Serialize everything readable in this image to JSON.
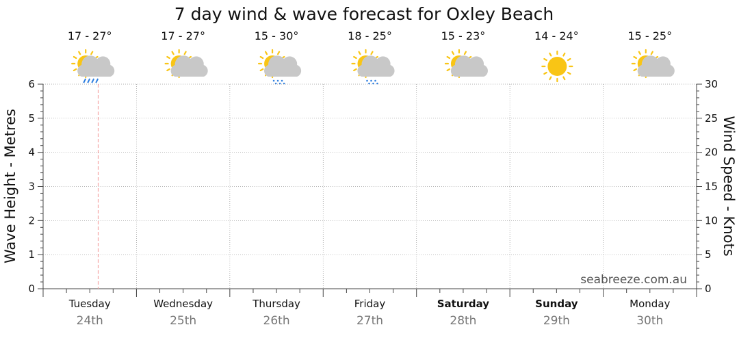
{
  "chart_data": {
    "type": "line",
    "title": "7 day wind & wave forecast for Oxley Beach",
    "ylabel": "Wave Height - Metres",
    "y2label": "Wind Speed - Knots",
    "ylim": [
      0,
      6
    ],
    "y2lim": [
      0,
      30
    ],
    "yticks": [
      "0",
      "1",
      "2",
      "3",
      "4",
      "5",
      "6"
    ],
    "y2ticks": [
      "0",
      "5",
      "10",
      "15",
      "20",
      "25",
      "30"
    ],
    "grid": true,
    "watermark": "seabreeze.com.au",
    "current_time_marker_day": 0,
    "days": [
      {
        "name": "Tuesday",
        "date": "24th",
        "temp": "17 - 27°",
        "icon": "sun-cloud-rain-icon",
        "weekend": false
      },
      {
        "name": "Wednesday",
        "date": "25th",
        "temp": "17 - 27°",
        "icon": "sun-cloud-icon",
        "weekend": false
      },
      {
        "name": "Thursday",
        "date": "26th",
        "temp": "15 - 30°",
        "icon": "sun-cloud-showers-icon",
        "weekend": false
      },
      {
        "name": "Friday",
        "date": "27th",
        "temp": "18 - 25°",
        "icon": "sun-cloud-showers-icon",
        "weekend": false
      },
      {
        "name": "Saturday",
        "date": "28th",
        "temp": "15 - 23°",
        "icon": "sun-cloud-icon",
        "weekend": true
      },
      {
        "name": "Sunday",
        "date": "29th",
        "temp": "14 - 24°",
        "icon": "sun-icon",
        "weekend": true
      },
      {
        "name": "Monday",
        "date": "30th",
        "temp": "15 - 25°",
        "icon": "sun-cloud-icon",
        "weekend": false
      }
    ],
    "series": []
  },
  "colors": {
    "grid": "#999999",
    "marker": "#f4a3a3",
    "sun": "#f9c515",
    "cloud": "#c8c8c8",
    "rain": "#2f7fe0",
    "date": "#777777",
    "watermark": "#555555"
  }
}
